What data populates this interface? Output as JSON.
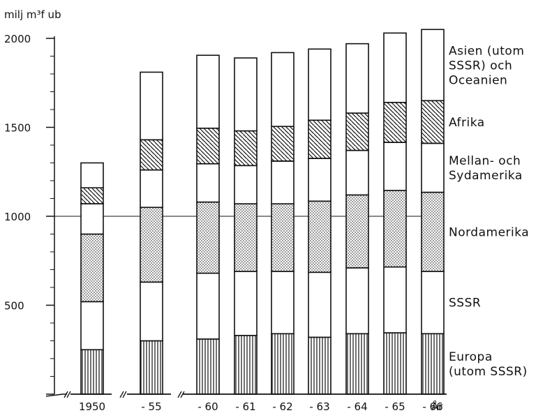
{
  "chart_data": {
    "type": "bar",
    "stacked": true,
    "ylabel": "milj m³f ub",
    "xlabel": "År",
    "ylim": [
      0,
      2000
    ],
    "yticks": [
      "2000",
      "1500",
      "1000",
      "500"
    ],
    "ytick_values": [
      2000,
      1500,
      1000,
      500
    ],
    "categories": [
      "1950",
      "- 55",
      "- 60",
      "- 61",
      "- 62",
      "- 63",
      "- 64",
      "- 65",
      "- 66"
    ],
    "reference_line": 1000,
    "grid": false,
    "legend_position": "right",
    "series": [
      {
        "name": "Europa (utom SSSR)",
        "label_lines": [
          "Europa",
          "(utom SSSR)"
        ],
        "pattern": "vertical-hatch",
        "values": [
          250,
          300,
          310,
          330,
          340,
          320,
          340,
          345,
          340
        ]
      },
      {
        "name": "SSSR",
        "label_lines": [
          "SSSR"
        ],
        "pattern": "blank",
        "values": [
          270,
          330,
          370,
          360,
          350,
          365,
          370,
          370,
          350
        ]
      },
      {
        "name": "Nordamerika",
        "label_lines": [
          "Nordamerika"
        ],
        "pattern": "dotted",
        "values": [
          380,
          420,
          400,
          380,
          380,
          400,
          410,
          430,
          445
        ]
      },
      {
        "name": "Mellan- och Sydamerika",
        "label_lines": [
          "Mellan- och",
          "Sydamerika"
        ],
        "pattern": "blank",
        "values": [
          170,
          210,
          215,
          215,
          240,
          240,
          250,
          270,
          275
        ]
      },
      {
        "name": "Afrika",
        "label_lines": [
          "Afrika"
        ],
        "pattern": "diagonal-hatch",
        "values": [
          90,
          170,
          200,
          195,
          195,
          215,
          210,
          225,
          240
        ]
      },
      {
        "name": "Asien (utom SSSR) och Oceanien",
        "label_lines": [
          "Asien (utom",
          "SSSR) och",
          "Oceanien"
        ],
        "pattern": "blank",
        "values": [
          140,
          380,
          410,
          410,
          415,
          400,
          390,
          390,
          400
        ]
      }
    ],
    "colors": {
      "ink": "#111111",
      "paper": "#ffffff",
      "dots": "#555555"
    }
  }
}
